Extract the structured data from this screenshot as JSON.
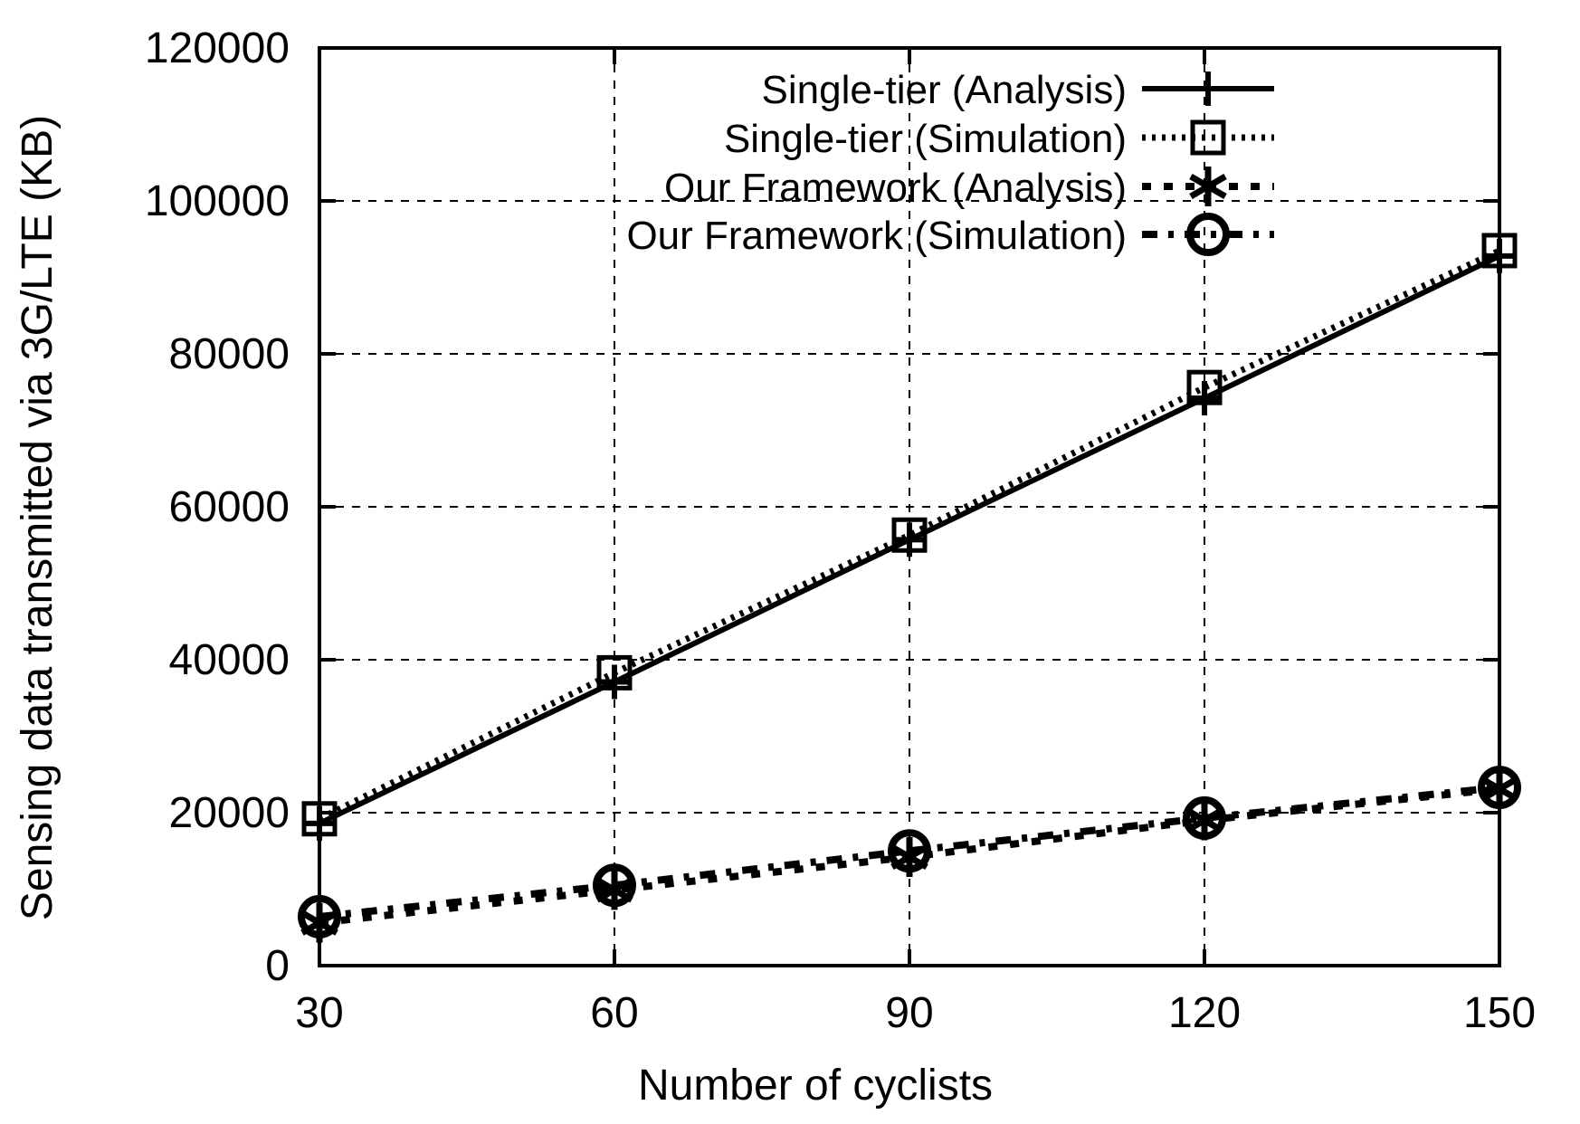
{
  "chart_data": {
    "type": "line",
    "title": "",
    "xlabel": "Number of cyclists",
    "ylabel": "Sensing data transmitted via 3G/LTE (KB)",
    "x": [
      30,
      60,
      90,
      120,
      150
    ],
    "xticks": [
      30,
      60,
      90,
      120,
      150
    ],
    "yticks": [
      0,
      20000,
      40000,
      60000,
      80000,
      100000,
      120000
    ],
    "xlim": [
      30,
      150
    ],
    "ylim": [
      0,
      120000
    ],
    "grid": true,
    "legend_position": "top-right-inside",
    "series": [
      {
        "name": "Single-tier (Analysis)",
        "marker": "plus",
        "line_style": "solid",
        "values": [
          18600,
          37100,
          55700,
          74200,
          92800
        ]
      },
      {
        "name": "Single-tier (Simulation)",
        "marker": "square",
        "line_style": "dotted",
        "values": [
          19200,
          38300,
          56300,
          75600,
          93500
        ]
      },
      {
        "name": "Our Framework (Analysis)",
        "marker": "asterisk",
        "line_style": "sparse-dotted",
        "values": [
          5600,
          9900,
          14200,
          19000,
          23100
        ]
      },
      {
        "name": "Our Framework (Simulation)",
        "marker": "circle",
        "line_style": "dash-dot",
        "values": [
          6400,
          10500,
          15000,
          19300,
          23300
        ]
      }
    ],
    "colors": {
      "foreground": "#000000",
      "background": "#ffffff"
    }
  }
}
